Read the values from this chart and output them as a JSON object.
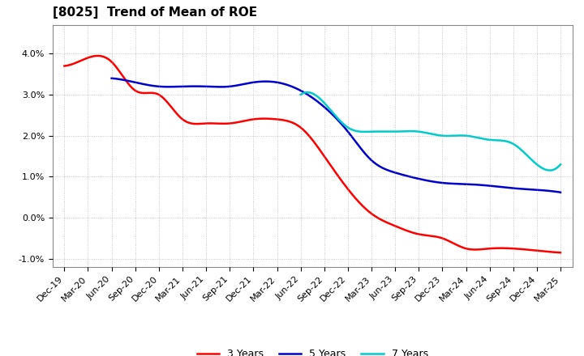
{
  "title": "[8025]  Trend of Mean of ROE",
  "background_color": "#ffffff",
  "grid_color": "#999999",
  "ylim": [
    -0.012,
    0.047
  ],
  "yticks": [
    -0.01,
    0.0,
    0.01,
    0.02,
    0.03,
    0.04
  ],
  "ytick_labels": [
    "-1.0%",
    "0.0%",
    "1.0%",
    "2.0%",
    "3.0%",
    "4.0%"
  ],
  "x_labels": [
    "Dec-19",
    "Mar-20",
    "Jun-20",
    "Sep-20",
    "Dec-20",
    "Mar-21",
    "Jun-21",
    "Sep-21",
    "Dec-21",
    "Mar-22",
    "Jun-22",
    "Sep-22",
    "Dec-22",
    "Mar-23",
    "Jun-23",
    "Sep-23",
    "Dec-23",
    "Mar-24",
    "Jun-24",
    "Sep-24",
    "Dec-24",
    "Mar-25"
  ],
  "series": {
    "3 Years": {
      "color": "#ff0000",
      "values": [
        0.037,
        0.039,
        0.038,
        0.031,
        0.03,
        0.024,
        0.023,
        0.023,
        0.024,
        0.024,
        0.022,
        0.015,
        0.007,
        0.001,
        -0.002,
        -0.004,
        -0.005,
        -0.0075,
        -0.0075,
        -0.0075,
        -0.008,
        -0.0085
      ]
    },
    "5 Years": {
      "color": "#0000cc",
      "values": [
        null,
        null,
        0.034,
        0.033,
        0.032,
        0.032,
        0.032,
        0.032,
        0.033,
        0.033,
        0.031,
        0.027,
        0.021,
        0.014,
        0.011,
        0.0095,
        0.0085,
        0.0082,
        0.0078,
        0.0072,
        0.0068,
        0.0062
      ]
    },
    "7 Years": {
      "color": "#00cccc",
      "values": [
        null,
        null,
        null,
        null,
        null,
        null,
        null,
        null,
        null,
        null,
        0.03,
        0.028,
        0.022,
        0.021,
        0.021,
        0.021,
        0.02,
        0.02,
        0.019,
        0.018,
        0.013,
        0.013
      ]
    },
    "10 Years": {
      "color": "#008800",
      "values": [
        null,
        null,
        null,
        null,
        null,
        null,
        null,
        null,
        null,
        null,
        null,
        null,
        null,
        null,
        null,
        null,
        null,
        null,
        null,
        null,
        null,
        null
      ]
    }
  },
  "title_fontsize": 11,
  "tick_fontsize": 8,
  "legend_fontsize": 9
}
